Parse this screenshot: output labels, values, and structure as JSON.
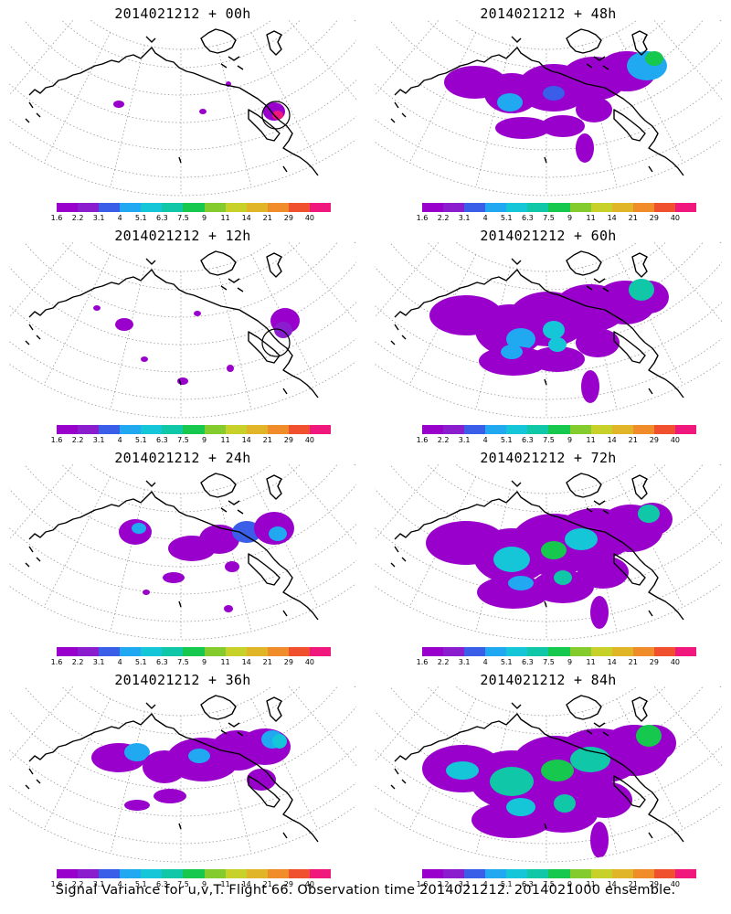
{
  "palette": [
    "#9900cc",
    "#8a1ecf",
    "#3a5ee8",
    "#20a8f0",
    "#14c6d8",
    "#10c8a8",
    "#16c84e",
    "#84cc2e",
    "#c8d02a",
    "#e0b628",
    "#f08c2a",
    "#f0502e",
    "#f0187c"
  ],
  "colorbar_ticks": [
    "1.6",
    "2.2",
    "3.1",
    "4",
    "5.1",
    "6.3",
    "7.5",
    "9",
    "11",
    "14",
    "21",
    "29",
    "40"
  ],
  "panels": [
    {
      "title": "2014021212 + 00h",
      "level": 0
    },
    {
      "title": "2014021212 + 48h",
      "level": 4
    },
    {
      "title": "2014021212 + 12h",
      "level": 1
    },
    {
      "title": "2014021212 + 60h",
      "level": 5
    },
    {
      "title": "2014021212 + 24h",
      "level": 2
    },
    {
      "title": "2014021212 + 72h",
      "level": 6
    },
    {
      "title": "2014021212 + 36h",
      "level": 3
    },
    {
      "title": "2014021212 + 84h",
      "level": 7
    }
  ],
  "caption": "Signal Variance for u,v,T. Flight 66. Observation time 2014021212. 2014021000 ensemble."
}
